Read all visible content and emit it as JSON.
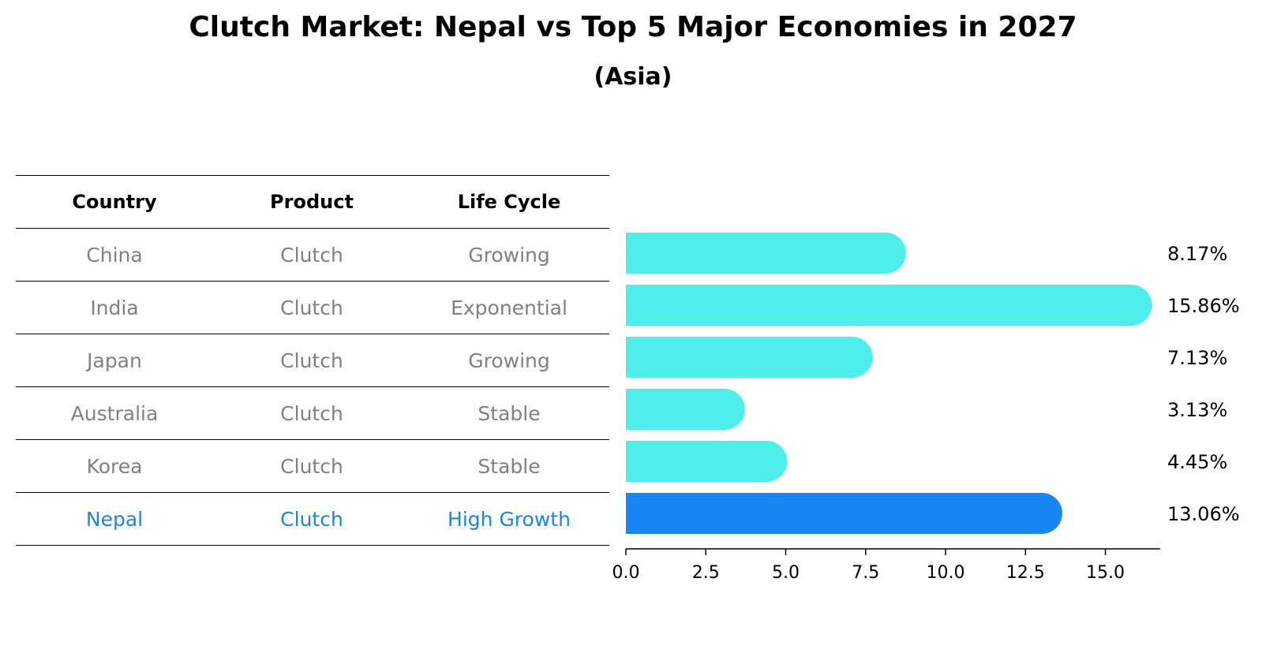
{
  "title": "Clutch Market: Nepal vs Top 5 Major Economies in 2027",
  "subtitle": "(Asia)",
  "table": {
    "headers": [
      "Country",
      "Product",
      "Life Cycle"
    ],
    "rows": [
      [
        "China",
        "Clutch",
        "Growing"
      ],
      [
        "India",
        "Clutch",
        "Exponential"
      ],
      [
        "Japan",
        "Clutch",
        "Growing"
      ],
      [
        "Australia",
        "Clutch",
        "Stable"
      ],
      [
        "Korea",
        "Clutch",
        "Stable"
      ],
      [
        "Nepal",
        "Clutch",
        "High Growth"
      ]
    ],
    "highlight_row": 5
  },
  "colors": {
    "bar": "#4eeeea",
    "highlight": "#1a85f5",
    "muted_text": "#808080",
    "highlight_text": "#1a85e5"
  },
  "chart_data": {
    "type": "bar",
    "orientation": "horizontal",
    "categories": [
      "China",
      "India",
      "Japan",
      "Australia",
      "Korea",
      "Nepal"
    ],
    "values": [
      8.17,
      15.86,
      7.13,
      3.13,
      4.45,
      13.06
    ],
    "data_labels": [
      "8.17%",
      "15.86%",
      "7.13%",
      "3.13%",
      "4.45%",
      "13.06%"
    ],
    "highlight": "Nepal",
    "xlim": [
      0,
      16.9
    ],
    "xticks": [
      0.0,
      2.5,
      5.0,
      7.5,
      10.0,
      12.5,
      15.0
    ],
    "xtick_labels": [
      "0.0",
      "2.5",
      "5.0",
      "7.5",
      "10.0",
      "12.5",
      "15.0"
    ],
    "grid": false
  }
}
